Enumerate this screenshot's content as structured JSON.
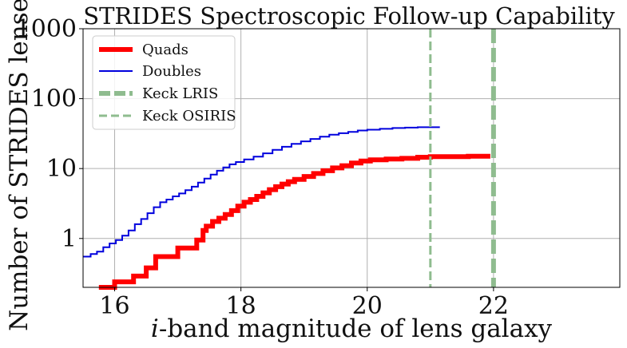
{
  "chart_data": {
    "type": "line",
    "title": "STRIDES Spectroscopic Follow-up Capability",
    "xlabel_italic": "i",
    "xlabel_rest": "-band magnitude of lens galaxy",
    "ylabel": "Number of STRIDES lenses",
    "xlim": [
      15.5,
      24.0
    ],
    "ylim_log": [
      0.2,
      1000
    ],
    "xticks": [
      16,
      18,
      20,
      22
    ],
    "yticks": [
      1,
      10,
      100,
      1000
    ],
    "ytick_labels": [
      "1",
      "10",
      "100",
      "1000"
    ],
    "grid": true,
    "legend_position": "top-left",
    "legend": [
      "Quads",
      "Doubles",
      "Keck LRIS",
      "Keck OSIRIS"
    ],
    "series": [
      {
        "name": "Doubles",
        "color": "#0000dd",
        "x": [
          15.5,
          15.62,
          15.72,
          15.82,
          15.92,
          16.02,
          16.12,
          16.22,
          16.32,
          16.42,
          16.52,
          16.62,
          16.72,
          16.82,
          16.92,
          17.02,
          17.12,
          17.22,
          17.32,
          17.42,
          17.52,
          17.62,
          17.72,
          17.82,
          17.92,
          18.05,
          18.2,
          18.35,
          18.5,
          18.65,
          18.8,
          18.95,
          19.1,
          19.25,
          19.4,
          19.55,
          19.7,
          19.85,
          20.0,
          20.2,
          20.4,
          20.6,
          20.8,
          21.0,
          21.15
        ],
        "y": [
          0.55,
          0.6,
          0.65,
          0.75,
          0.85,
          0.95,
          1.1,
          1.3,
          1.6,
          1.9,
          2.3,
          2.8,
          3.3,
          3.6,
          4.0,
          4.4,
          4.9,
          5.5,
          6.3,
          7.2,
          8.2,
          9.3,
          10.4,
          11.5,
          12.4,
          13.5,
          14.8,
          16.5,
          18.5,
          20.5,
          22.5,
          24.5,
          26.5,
          28.5,
          30.5,
          32.0,
          33.5,
          35.0,
          36.0,
          37.0,
          38.0,
          38.5,
          39.0,
          39.0,
          39.0
        ]
      },
      {
        "name": "Quads",
        "color": "#ff0000",
        "x": [
          15.75,
          16.0,
          16.3,
          16.5,
          16.65,
          16.8,
          17.0,
          17.15,
          17.3,
          17.4,
          17.45,
          17.55,
          17.65,
          17.75,
          17.85,
          17.95,
          18.05,
          18.15,
          18.25,
          18.35,
          18.45,
          18.55,
          18.65,
          18.75,
          18.85,
          19.0,
          19.15,
          19.3,
          19.45,
          19.6,
          19.75,
          19.9,
          20.05,
          20.3,
          20.55,
          20.8,
          21.0,
          21.2,
          21.4,
          21.6,
          21.95
        ],
        "y": [
          0.2,
          0.24,
          0.29,
          0.38,
          0.55,
          0.55,
          0.73,
          0.73,
          0.95,
          1.3,
          1.5,
          1.75,
          1.95,
          2.2,
          2.5,
          2.9,
          3.3,
          3.6,
          4.0,
          4.5,
          5.0,
          5.5,
          6.0,
          6.5,
          7.0,
          7.7,
          8.5,
          9.3,
          10.2,
          11.0,
          12.0,
          12.8,
          13.3,
          13.7,
          14.0,
          14.5,
          14.8,
          14.8,
          14.8,
          15.0,
          15.0
        ]
      }
    ],
    "vlines": [
      {
        "name": "Keck LRIS",
        "x": 22.0,
        "color": "#8fbc8f"
      },
      {
        "name": "Keck OSIRIS",
        "x": 21.0,
        "color": "#8fbc8f"
      }
    ]
  }
}
